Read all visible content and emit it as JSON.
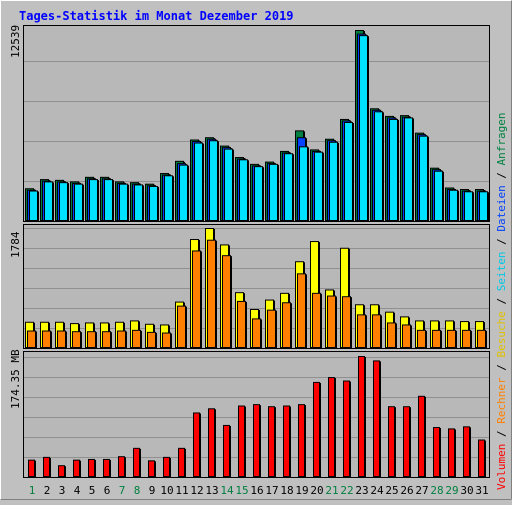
{
  "chart_data": [
    {
      "type": "bar",
      "title": "Tages-Statistik im Monat Dezember 2019",
      "ymax_label": "12539",
      "ylim": [
        0,
        12539
      ],
      "categories": [
        "1",
        "2",
        "3",
        "4",
        "5",
        "6",
        "7",
        "8",
        "9",
        "10",
        "11",
        "12",
        "13",
        "14",
        "15",
        "16",
        "17",
        "18",
        "19",
        "20",
        "21",
        "22",
        "23",
        "24",
        "25",
        "26",
        "27",
        "28",
        "29",
        "30",
        "31"
      ],
      "weekend_days": [
        "1",
        "7",
        "8",
        "14",
        "15",
        "21",
        "22",
        "28",
        "29"
      ],
      "series": [
        {
          "name": "Anfragen",
          "color": "#008040",
          "values": [
            2150,
            2750,
            2700,
            2600,
            2900,
            2900,
            2600,
            2550,
            2450,
            3150,
            3950,
            5350,
            5500,
            4950,
            4200,
            3750,
            3900,
            4600,
            5950,
            4700,
            5400,
            6700,
            12539,
            7400,
            6900,
            6950,
            5800,
            3500,
            2200,
            2100,
            2100
          ]
        },
        {
          "name": "Dateien",
          "color": "#0040ff",
          "values": [
            2050,
            2650,
            2600,
            2500,
            2800,
            2800,
            2500,
            2450,
            2350,
            3050,
            3800,
            5250,
            5400,
            4850,
            4100,
            3650,
            3800,
            4500,
            5500,
            4600,
            5300,
            6600,
            12300,
            7300,
            6800,
            6850,
            5700,
            3400,
            2100,
            2000,
            2000
          ]
        },
        {
          "name": "Seiten",
          "color": "#00e0ff",
          "values": [
            2000,
            2600,
            2550,
            2450,
            2750,
            2750,
            2450,
            2400,
            2300,
            3000,
            3700,
            5150,
            5300,
            4750,
            4050,
            3600,
            3750,
            4450,
            4900,
            4550,
            5200,
            6500,
            12200,
            7200,
            6700,
            6800,
            5600,
            3300,
            2050,
            1950,
            1950
          ]
        }
      ]
    },
    {
      "type": "bar",
      "ymax_label": "1784",
      "ylim": [
        0,
        1784
      ],
      "categories": [
        "1",
        "2",
        "3",
        "4",
        "5",
        "6",
        "7",
        "8",
        "9",
        "10",
        "11",
        "12",
        "13",
        "14",
        "15",
        "16",
        "17",
        "18",
        "19",
        "20",
        "21",
        "22",
        "23",
        "24",
        "25",
        "26",
        "27",
        "28",
        "29",
        "30",
        "31"
      ],
      "series": [
        {
          "name": "Besuche",
          "color": "#ffff00",
          "values": [
            390,
            390,
            390,
            370,
            380,
            380,
            390,
            410,
            360,
            350,
            690,
            1620,
            1784,
            1540,
            830,
            580,
            720,
            820,
            1290,
            1590,
            870,
            1490,
            650,
            650,
            540,
            470,
            410,
            410,
            410,
            400,
            400
          ]
        },
        {
          "name": "Rechner",
          "color": "#ff8000",
          "values": [
            260,
            260,
            260,
            250,
            250,
            250,
            260,
            270,
            240,
            230,
            630,
            1450,
            1610,
            1380,
            700,
            440,
            570,
            680,
            1110,
            820,
            780,
            770,
            500,
            500,
            380,
            350,
            270,
            270,
            270,
            270,
            270
          ]
        }
      ]
    },
    {
      "type": "bar",
      "ymax_label": "174.35 MB",
      "ylim": [
        0,
        174.35
      ],
      "categories": [
        "1",
        "2",
        "3",
        "4",
        "5",
        "6",
        "7",
        "8",
        "9",
        "10",
        "11",
        "12",
        "13",
        "14",
        "15",
        "16",
        "17",
        "18",
        "19",
        "20",
        "21",
        "22",
        "23",
        "24",
        "25",
        "26",
        "27",
        "28",
        "29",
        "30",
        "31"
      ],
      "series": [
        {
          "name": "Volumen",
          "color": "#ff0000",
          "values": [
            25,
            29,
            17,
            25,
            26,
            26,
            30,
            42,
            24,
            29,
            42,
            93,
            99,
            75,
            103,
            105,
            102,
            103,
            105,
            137,
            144,
            139,
            174.35,
            168,
            102,
            102,
            117,
            72,
            70,
            73,
            54
          ]
        }
      ]
    }
  ]
}
